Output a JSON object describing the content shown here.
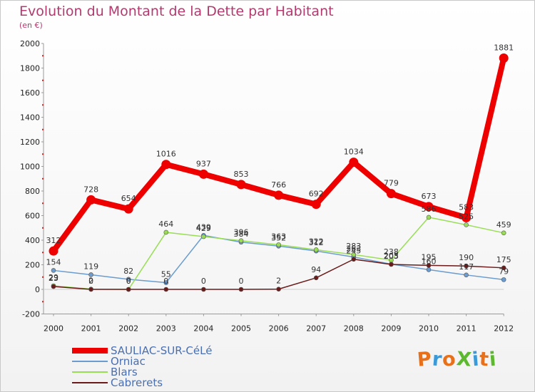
{
  "title": "Evolution du Montant de la Dette par Habitant",
  "subtitle": "(en €)",
  "logo": {
    "text": "ProXiti",
    "colors": [
      "#e8701a",
      "#3a9ad9",
      "#e8701a",
      "#5cb82e",
      "#3a9ad9",
      "#e8701a",
      "#5cb82e"
    ]
  },
  "chart_data": {
    "type": "line",
    "title": "Evolution du Montant de la Dette par Habitant",
    "subtitle": "(en €)",
    "xlabel": "",
    "ylabel": "",
    "x": [
      "2000",
      "2001",
      "2002",
      "2003",
      "2004",
      "2005",
      "2006",
      "2007",
      "2008",
      "2009",
      "2010",
      "2011",
      "2012"
    ],
    "ylim": [
      -200,
      2000
    ],
    "yticks": [
      -200,
      0,
      200,
      400,
      600,
      800,
      1000,
      1200,
      1400,
      1600,
      1800,
      2000
    ],
    "grid": false,
    "legend": "bottom-left",
    "series": [
      {
        "name": "SAULIAC-SUR-CéLé",
        "color": "#ee0000",
        "values": [
          312,
          728,
          654,
          1016,
          937,
          853,
          766,
          692,
          1034,
          779,
          673,
          583,
          1881
        ]
      },
      {
        "name": "Orniac",
        "color": "#6a9ccf",
        "values": [
          154,
          119,
          82,
          55,
          439,
          384,
          352,
          312,
          263,
          205,
          160,
          117,
          79
        ]
      },
      {
        "name": "Blars",
        "color": "#99dd55",
        "values": [
          29,
          2,
          0,
          464,
          429,
          396,
          363,
          322,
          283,
          238,
          586,
          525,
          459
        ]
      },
      {
        "name": "Cabrerets",
        "color": "#6b1a1a",
        "values": [
          23,
          0,
          0,
          0,
          0,
          0,
          2,
          94,
          245,
          203,
          195,
          190,
          175
        ]
      }
    ]
  }
}
